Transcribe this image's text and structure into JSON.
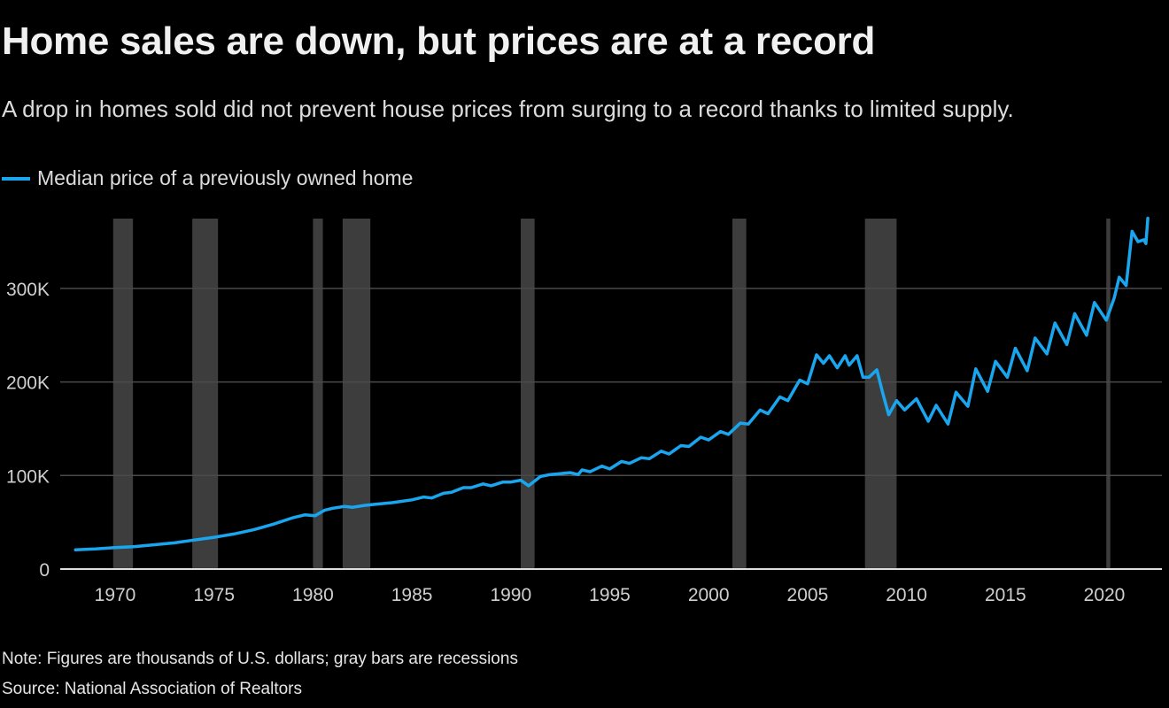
{
  "title": "Home sales are down, but prices are at a record",
  "subtitle": "A drop in homes sold did not prevent house prices from surging to a record thanks to limited supply.",
  "notes": {
    "note": "Note: Figures are thousands of U.S. dollars; gray bars are recessions",
    "source": "Source: National Association of Realtors"
  },
  "colors": {
    "line": "#1aa6ef",
    "recession": "#3d3d3d",
    "grid": "#4a4a4a",
    "baseline": "#dddddd",
    "background": "#000000"
  },
  "chart_data": {
    "type": "line",
    "title": "Home sales are down, but prices are at a record",
    "xlabel": "",
    "ylabel": "",
    "xlim": [
      1967.4,
      2023.2
    ],
    "ylim": [
      0,
      380
    ],
    "grid": true,
    "legend_placement": "top-left",
    "x_ticks": [
      1970,
      1975,
      1980,
      1985,
      1990,
      1995,
      2000,
      2005,
      2010,
      2015,
      2020
    ],
    "x_tick_labels": [
      "1970",
      "1975",
      "1980",
      "1985",
      "1990",
      "1995",
      "2000",
      "2005",
      "2010",
      "2015",
      "2020"
    ],
    "y_ticks": [
      0,
      100,
      200,
      300
    ],
    "y_tick_labels": [
      "0",
      "100K",
      "200K",
      "300K"
    ],
    "recessions": [
      [
        1969.9,
        1970.9
      ],
      [
        1973.9,
        1975.2
      ],
      [
        1980.0,
        1980.5
      ],
      [
        1981.5,
        1982.9
      ],
      [
        1990.5,
        1991.2
      ],
      [
        2001.2,
        2001.9
      ],
      [
        2007.9,
        2009.5
      ],
      [
        2020.1,
        2020.3
      ]
    ],
    "series": [
      {
        "name": "Median price of a previously owned home",
        "x": [
          1968.0,
          1969.0,
          1970.0,
          1971.0,
          1972.0,
          1973.0,
          1974.0,
          1975.0,
          1976.0,
          1977.0,
          1978.0,
          1979.0,
          1979.6,
          1980.1,
          1980.6,
          1981.0,
          1981.6,
          1982.0,
          1982.6,
          1983.0,
          1984.0,
          1985.0,
          1985.6,
          1986.0,
          1986.6,
          1987.0,
          1987.6,
          1988.0,
          1988.6,
          1989.0,
          1989.6,
          1990.0,
          1990.5,
          1990.9,
          1991.5,
          1992.0,
          1993.0,
          1993.4,
          1993.6,
          1994.0,
          1994.6,
          1995.0,
          1995.6,
          1996.0,
          1996.6,
          1997.0,
          1997.6,
          1998.0,
          1998.6,
          1999.0,
          1999.6,
          2000.0,
          2000.6,
          2001.0,
          2001.6,
          2002.0,
          2002.6,
          2003.0,
          2003.6,
          2004.0,
          2004.6,
          2005.0,
          2005.45,
          2005.8,
          2006.1,
          2006.5,
          2006.9,
          2007.1,
          2007.5,
          2007.8,
          2008.1,
          2008.5,
          2008.8,
          2009.1,
          2009.5,
          2009.9,
          2010.5,
          2011.1,
          2011.5,
          2012.1,
          2012.5,
          2013.1,
          2013.5,
          2014.1,
          2014.5,
          2015.1,
          2015.5,
          2016.1,
          2016.5,
          2017.1,
          2017.5,
          2018.1,
          2018.5,
          2019.1,
          2019.5,
          2020.1,
          2020.5,
          2020.75,
          2021.1,
          2021.4,
          2021.7,
          2022.0,
          2022.1,
          2022.2
        ],
        "y": [
          20.5,
          21.5,
          23,
          24,
          26,
          28,
          31,
          34,
          37.5,
          42,
          48,
          55,
          58,
          57,
          63,
          65,
          67,
          66,
          68,
          69,
          71,
          74,
          77,
          76,
          81,
          82,
          87,
          87,
          91,
          89,
          93,
          93,
          95,
          89,
          99,
          101,
          103,
          101,
          106,
          104,
          110,
          107,
          115,
          113,
          119,
          118,
          126,
          123,
          132,
          131,
          141,
          138,
          147,
          144,
          156,
          155,
          170,
          166,
          184,
          180,
          202,
          198,
          229,
          220,
          228,
          215,
          228,
          218,
          228,
          205,
          205,
          213,
          188,
          165,
          180,
          170,
          182,
          158,
          175,
          155,
          189,
          174,
          214,
          190,
          222,
          205,
          236,
          212,
          247,
          230,
          263,
          240,
          273,
          250,
          285,
          266,
          290,
          312,
          303,
          361,
          350,
          352,
          348,
          375
        ]
      }
    ]
  }
}
